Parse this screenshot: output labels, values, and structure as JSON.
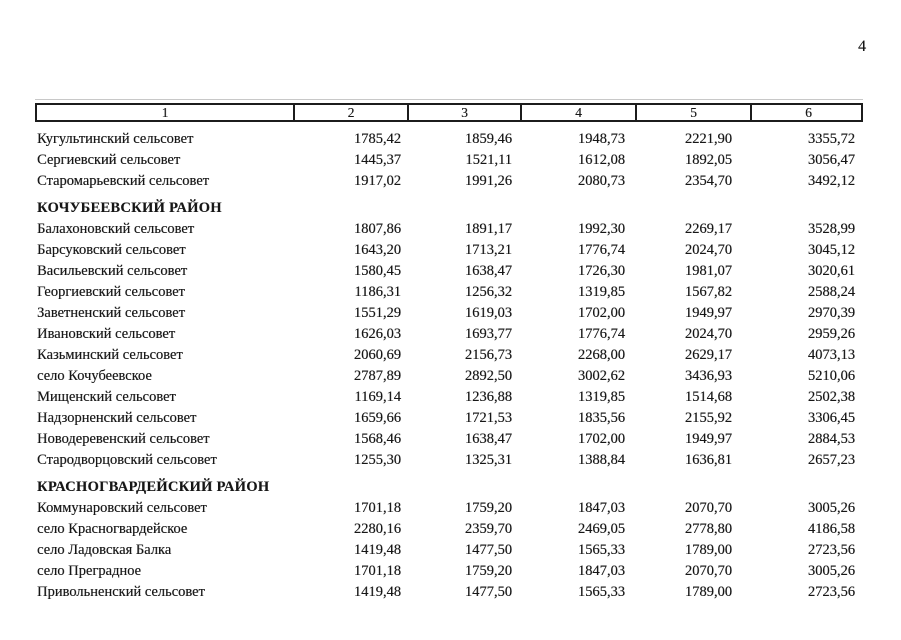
{
  "page": {
    "number": "4"
  },
  "table": {
    "header_columns": [
      "1",
      "2",
      "3",
      "4",
      "5",
      "6"
    ],
    "sections": [
      {
        "district": "",
        "rows": [
          {
            "name": "Кугультинский сельсовет",
            "values": [
              "1785,42",
              "1859,46",
              "1948,73",
              "2221,90",
              "3355,72"
            ]
          },
          {
            "name": "Сергиевский сельсовет",
            "values": [
              "1445,37",
              "1521,11",
              "1612,08",
              "1892,05",
              "3056,47"
            ]
          },
          {
            "name": "Старомарьевский сельсовет",
            "values": [
              "1917,02",
              "1991,26",
              "2080,73",
              "2354,70",
              "3492,12"
            ]
          }
        ]
      },
      {
        "district": "КОЧУБЕЕВСКИЙ РАЙОН",
        "rows": [
          {
            "name": "Балахоновский сельсовет",
            "values": [
              "1807,86",
              "1891,17",
              "1992,30",
              "2269,17",
              "3528,99"
            ]
          },
          {
            "name": "Барсуковский сельсовет",
            "values": [
              "1643,20",
              "1713,21",
              "1776,74",
              "2024,70",
              "3045,12"
            ]
          },
          {
            "name": "Васильевский сельсовет",
            "values": [
              "1580,45",
              "1638,47",
              "1726,30",
              "1981,07",
              "3020,61"
            ]
          },
          {
            "name": "Георгиевский сельсовет",
            "values": [
              "1186,31",
              "1256,32",
              "1319,85",
              "1567,82",
              "2588,24"
            ]
          },
          {
            "name": "Заветненский сельсовет",
            "values": [
              "1551,29",
              "1619,03",
              "1702,00",
              "1949,97",
              "2970,39"
            ]
          },
          {
            "name": "Ивановский сельсовет",
            "values": [
              "1626,03",
              "1693,77",
              "1776,74",
              "2024,70",
              "2959,26"
            ]
          },
          {
            "name": "Казьминский сельсовет",
            "values": [
              "2060,69",
              "2156,73",
              "2268,00",
              "2629,17",
              "4073,13"
            ]
          },
          {
            "name": "село Кочубеевское",
            "values": [
              "2787,89",
              "2892,50",
              "3002,62",
              "3436,93",
              "5210,06"
            ]
          },
          {
            "name": "Мищенский сельсовет",
            "values": [
              "1169,14",
              "1236,88",
              "1319,85",
              "1514,68",
              "2502,38"
            ]
          },
          {
            "name": "Надзорненский сельсовет",
            "values": [
              "1659,66",
              "1721,53",
              "1835,56",
              "2155,92",
              "3306,45"
            ]
          },
          {
            "name": "Новодеревенский сельсовет",
            "values": [
              "1568,46",
              "1638,47",
              "1702,00",
              "1949,97",
              "2884,53"
            ]
          },
          {
            "name": "Стародворцовский сельсовет",
            "values": [
              "1255,30",
              "1325,31",
              "1388,84",
              "1636,81",
              "2657,23"
            ]
          }
        ]
      },
      {
        "district": "КРАСНОГВАРДЕЙСКИЙ РАЙОН",
        "rows": [
          {
            "name": "Коммунаровский сельсовет",
            "values": [
              "1701,18",
              "1759,20",
              "1847,03",
              "2070,70",
              "3005,26"
            ]
          },
          {
            "name": "село Красногвардейское",
            "values": [
              "2280,16",
              "2359,70",
              "2469,05",
              "2778,80",
              "4186,58"
            ]
          },
          {
            "name": "село Ладовская Балка",
            "values": [
              "1419,48",
              "1477,50",
              "1565,33",
              "1789,00",
              "2723,56"
            ]
          },
          {
            "name": "село Преградное",
            "values": [
              "1701,18",
              "1759,20",
              "1847,03",
              "2070,70",
              "3005,26"
            ]
          },
          {
            "name": "Привольненский сельсовет",
            "values": [
              "1419,48",
              "1477,50",
              "1565,33",
              "1789,00",
              "2723,56"
            ]
          }
        ]
      }
    ]
  }
}
